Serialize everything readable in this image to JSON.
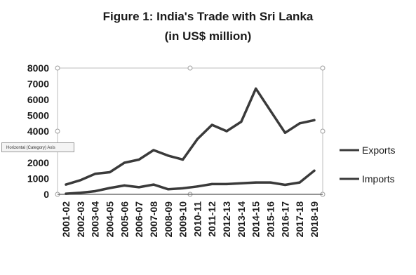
{
  "chart_data": {
    "type": "line",
    "title": "Figure 1: India's Trade with Sri Lanka",
    "subtitle": "(in US$ million)",
    "categories": [
      "2001-02",
      "2002-03",
      "2003-04",
      "2004-05",
      "2005-06",
      "2006-07",
      "2007-08",
      "2008-09",
      "2009-10",
      "2010-11",
      "2011-12",
      "2012-13",
      "2013-14",
      "2014-15",
      "2015-16",
      "2016-17",
      "2017-18",
      "2018-19"
    ],
    "series": [
      {
        "name": "Exports",
        "color": "#3a3a3a",
        "values": [
          620,
          900,
          1300,
          1400,
          2000,
          2200,
          2800,
          2450,
          2200,
          3500,
          4400,
          4000,
          4600,
          6700,
          5300,
          3900,
          4500,
          4700
        ]
      },
      {
        "name": "Imports",
        "color": "#3a3a3a",
        "values": [
          40,
          100,
          200,
          400,
          560,
          450,
          620,
          320,
          380,
          500,
          650,
          650,
          700,
          750,
          750,
          600,
          750,
          1500
        ]
      }
    ],
    "ylim": [
      0,
      8000
    ],
    "yticks": [
      0,
      1000,
      2000,
      3000,
      4000,
      5000,
      6000,
      7000,
      8000
    ],
    "grid": false,
    "legend_position": "right"
  },
  "overlay": {
    "axis_tooltip": "Horizontal (Category) Axis"
  }
}
